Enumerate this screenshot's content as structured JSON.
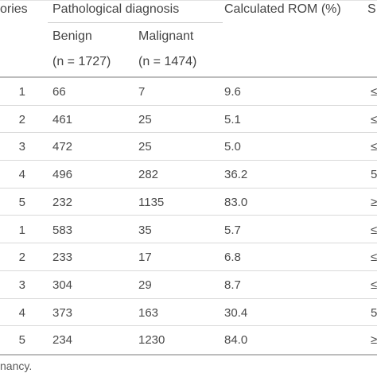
{
  "table": {
    "header": {
      "col_categories": "ories",
      "col_pathology": "Pathological diagnosis",
      "col_rom": "Calculated ROM (%)",
      "col_edge": "S",
      "benign_label": "Benign",
      "benign_n": "(n = 1727)",
      "malignant_label": "Malignant",
      "malignant_n": "(n = 1474)"
    },
    "rows": [
      {
        "category": "1",
        "benign": "66",
        "malignant": "7",
        "rom": "9.6",
        "edge": "≤"
      },
      {
        "category": "2",
        "benign": "461",
        "malignant": "25",
        "rom": "5.1",
        "edge": "≤"
      },
      {
        "category": "3",
        "benign": "472",
        "malignant": "25",
        "rom": "5.0",
        "edge": "≤"
      },
      {
        "category": "4",
        "benign": "496",
        "malignant": "282",
        "rom": "36.2",
        "edge": "5"
      },
      {
        "category": "5",
        "benign": "232",
        "malignant": "1135",
        "rom": "83.0",
        "edge": "≥"
      },
      {
        "category": "1",
        "benign": "583",
        "malignant": "35",
        "rom": "5.7",
        "edge": "≤"
      },
      {
        "category": "2",
        "benign": "233",
        "malignant": "17",
        "rom": "6.8",
        "edge": "≤"
      },
      {
        "category": "3",
        "benign": "304",
        "malignant": "29",
        "rom": "8.7",
        "edge": "≤"
      },
      {
        "category": "4",
        "benign": "373",
        "malignant": "163",
        "rom": "30.4",
        "edge": "5"
      },
      {
        "category": "5",
        "benign": "234",
        "malignant": "1230",
        "rom": "84.0",
        "edge": "≥"
      }
    ]
  },
  "footnote": "nancy."
}
